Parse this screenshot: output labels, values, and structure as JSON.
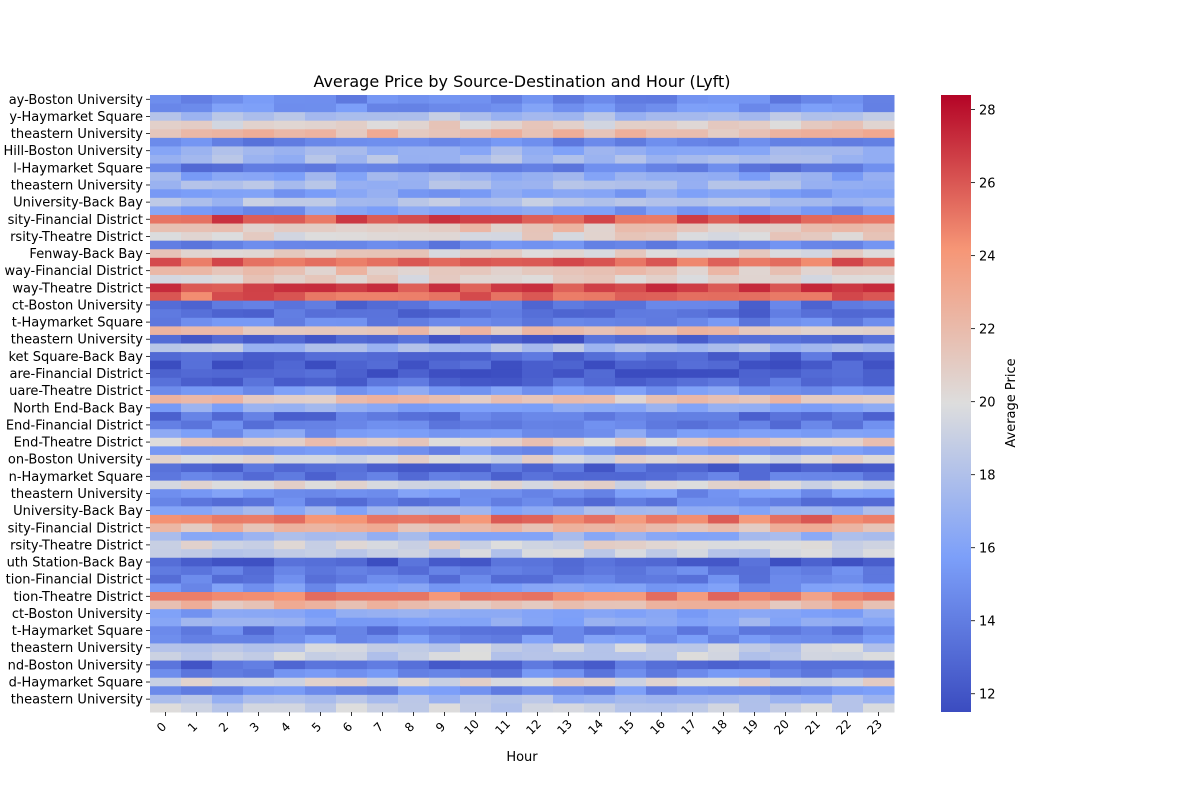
{
  "chart_data": {
    "type": "heatmap",
    "title": "Average Price by Source-Destination and Hour (Lyft)",
    "xlabel": "Hour",
    "ylabel": "",
    "x_categories": [
      "0",
      "1",
      "2",
      "3",
      "4",
      "5",
      "6",
      "7",
      "8",
      "9",
      "10",
      "11",
      "12",
      "13",
      "14",
      "15",
      "16",
      "17",
      "18",
      "19",
      "20",
      "21",
      "22",
      "23"
    ],
    "y_tick_labels": [
      {
        "row": 0,
        "label": "ay-Boston University"
      },
      {
        "row": 2,
        "label": "y-Haymarket Square"
      },
      {
        "row": 4,
        "label": "theastern University"
      },
      {
        "row": 6,
        "label": "Hill-Boston University"
      },
      {
        "row": 8,
        "label": "l-Haymarket Square"
      },
      {
        "row": 10,
        "label": "theastern University"
      },
      {
        "row": 12,
        "label": "University-Back Bay"
      },
      {
        "row": 14,
        "label": "sity-Financial District"
      },
      {
        "row": 16,
        "label": "rsity-Theatre District"
      },
      {
        "row": 18,
        "label": "Fenway-Back Bay"
      },
      {
        "row": 20,
        "label": "way-Financial District"
      },
      {
        "row": 22,
        "label": "way-Theatre District"
      },
      {
        "row": 24,
        "label": "ct-Boston University"
      },
      {
        "row": 26,
        "label": "t-Haymarket Square"
      },
      {
        "row": 28,
        "label": "theastern University"
      },
      {
        "row": 30,
        "label": "ket Square-Back Bay"
      },
      {
        "row": 32,
        "label": "are-Financial District"
      },
      {
        "row": 34,
        "label": "uare-Theatre District"
      },
      {
        "row": 36,
        "label": "North End-Back Bay"
      },
      {
        "row": 38,
        "label": "End-Financial District"
      },
      {
        "row": 40,
        "label": "End-Theatre District"
      },
      {
        "row": 42,
        "label": "on-Boston University"
      },
      {
        "row": 44,
        "label": "n-Haymarket Square"
      },
      {
        "row": 46,
        "label": "theastern University"
      },
      {
        "row": 48,
        "label": "University-Back Bay"
      },
      {
        "row": 50,
        "label": "sity-Financial District"
      },
      {
        "row": 52,
        "label": "rsity-Theatre District"
      },
      {
        "row": 54,
        "label": "uth Station-Back Bay"
      },
      {
        "row": 56,
        "label": "tion-Financial District"
      },
      {
        "row": 58,
        "label": "tion-Theatre District"
      },
      {
        "row": 60,
        "label": "ct-Boston University"
      },
      {
        "row": 62,
        "label": "t-Haymarket Square"
      },
      {
        "row": 64,
        "label": "theastern University"
      },
      {
        "row": 66,
        "label": "nd-Boston University"
      },
      {
        "row": 68,
        "label": "d-Haymarket Square"
      },
      {
        "row": 70,
        "label": "theastern University"
      }
    ],
    "row_count": 72,
    "row_means": [
      14.5,
      15.0,
      18.0,
      20.5,
      22.0,
      14.5,
      17.0,
      17.5,
      14.0,
      16.5,
      17.5,
      16.0,
      18.0,
      15.5,
      26.0,
      21.5,
      20.5,
      14.5,
      20.5,
      25.5,
      21.5,
      20.5,
      26.5,
      25.5,
      13.5,
      13.0,
      14.5,
      21.5,
      12.5,
      18.0,
      13.0,
      12.5,
      12.5,
      13.0,
      15.5,
      21.5,
      16.5,
      13.5,
      14.0,
      15.5,
      21.0,
      15.0,
      20.0,
      13.0,
      13.5,
      20.0,
      15.0,
      14.0,
      17.0,
      25.0,
      22.0,
      17.0,
      20.0,
      19.0,
      12.5,
      14.0,
      14.0,
      15.5,
      24.5,
      22.0,
      16.0,
      16.5,
      14.0,
      15.0,
      19.0,
      19.0,
      13.0,
      14.5,
      20.0,
      15.0,
      17.5,
      19.0
    ],
    "value_note": "Average Price per cell; cells shown in the figure vary around each row mean",
    "colorbar": {
      "label": "Average Price",
      "min": 11.5,
      "max": 28.4,
      "ticks": [
        12,
        14,
        16,
        18,
        20,
        22,
        24,
        26,
        28
      ],
      "colormap": "coolwarm"
    }
  }
}
